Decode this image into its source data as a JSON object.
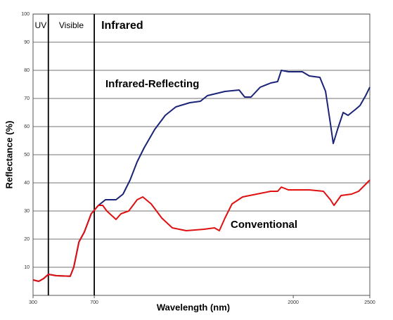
{
  "chart_data": {
    "type": "line",
    "x_label": "Wavelength (nm)",
    "y_label": "Reflectance (%)",
    "regions": [
      {
        "label": "UV",
        "start": 300,
        "end": 400
      },
      {
        "label": "Visible",
        "start": 400,
        "end": 700
      },
      {
        "label": "Infrared",
        "start": 700,
        "end": 2500
      }
    ],
    "xlim": [
      300,
      2500
    ],
    "xticks": [
      300,
      700,
      2000,
      2500
    ],
    "ylim": [
      0,
      100
    ],
    "yticks": [
      10,
      20,
      30,
      40,
      50,
      60,
      70,
      80,
      90,
      100
    ],
    "grid": true,
    "series": [
      {
        "name": "Infrared-Reflecting",
        "color": "#1a2378",
        "x": [
          300,
          337,
          370,
          400,
          452,
          543,
          566,
          600,
          635,
          680,
          727,
          773,
          842,
          888,
          934,
          980,
          1026,
          1095,
          1164,
          1233,
          1324,
          1393,
          1439,
          1554,
          1646,
          1683,
          1724,
          1784,
          1853,
          1898,
          1922,
          1968,
          2059,
          2105,
          2174,
          2211,
          2243,
          2261,
          2289,
          2326,
          2358,
          2404,
          2436,
          2473,
          2500
        ],
        "values": [
          5.5,
          5,
          6,
          7.5,
          7,
          6.8,
          10,
          19,
          22.5,
          29,
          32,
          34,
          34,
          36,
          41,
          47.5,
          52.5,
          59,
          64,
          67,
          68.5,
          69,
          71,
          72.5,
          73,
          70.5,
          70.5,
          74,
          75.5,
          76,
          80,
          79.5,
          79.5,
          78,
          77.5,
          72.5,
          61,
          54,
          59,
          65,
          64,
          66,
          67.5,
          71,
          74
        ]
      },
      {
        "name": "Conventional",
        "color": "#e01010",
        "x": [
          300,
          337,
          370,
          400,
          452,
          543,
          566,
          600,
          635,
          680,
          727,
          755,
          782,
          842,
          874,
          925,
          980,
          1017,
          1072,
          1141,
          1210,
          1301,
          1416,
          1485,
          1517,
          1554,
          1600,
          1669,
          1761,
          1853,
          1898,
          1922,
          1968,
          2105,
          2197,
          2243,
          2266,
          2312,
          2381,
          2427,
          2473,
          2500
        ],
        "values": [
          5.5,
          5,
          6,
          7.5,
          7,
          6.8,
          10,
          19,
          22.5,
          29,
          32,
          32,
          30,
          27,
          29,
          30,
          34,
          35,
          32.5,
          27.5,
          24,
          23,
          23.5,
          24,
          23,
          27.5,
          32.5,
          35,
          36,
          37,
          37,
          38.5,
          37.5,
          37.5,
          37,
          34,
          32,
          35.5,
          36,
          37,
          39.5,
          41
        ]
      }
    ]
  }
}
